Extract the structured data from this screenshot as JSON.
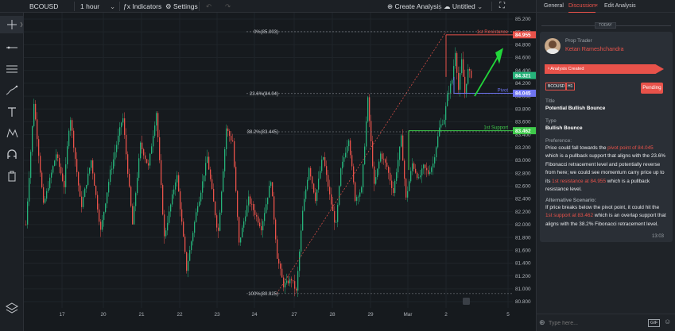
{
  "toolbar": {
    "symbol": "BCOUSD",
    "interval": "1 hour",
    "indicators": "Indicators",
    "settings": "Settings",
    "create_analysis": "Create Analysis",
    "untitled": "Untitled"
  },
  "left_tools": [
    "crosshair-icon",
    "horizontal-line-icon",
    "channel-icon",
    "brush-icon",
    "text-icon",
    "pattern-icon",
    "magnet-icon",
    "trash-icon"
  ],
  "chart_data": {
    "type": "candlestick",
    "symbol": "BCOUSD",
    "interval": "1 hour",
    "ylim": [
      80.8,
      85.2
    ],
    "y_ticks": [
      "85.200",
      "85.000",
      "84.800",
      "84.600",
      "84.400",
      "84.200",
      "84.000",
      "83.800",
      "83.600",
      "83.400",
      "83.200",
      "83.000",
      "82.800",
      "82.600",
      "82.400",
      "82.200",
      "82.000",
      "81.800",
      "81.600",
      "81.400",
      "81.200",
      "81.000",
      "80.800"
    ],
    "x_ticks": [
      "17",
      "20",
      "21",
      "22",
      "23",
      "24",
      "27",
      "28",
      "29",
      "Mar",
      "2",
      "5"
    ],
    "fib_levels": [
      {
        "label": "0%(85.003)",
        "value": 85.003
      },
      {
        "label": "23.6%(84.04)",
        "value": 84.04
      },
      {
        "label": "38.2%(83.445)",
        "value": 83.445
      },
      {
        "label": "100%(80.925)",
        "value": 80.925
      }
    ],
    "lines": [
      {
        "label": "1st Resistance",
        "value": 84.955,
        "badge": "84.955",
        "color": "#e8524a"
      },
      {
        "label": "Pivot",
        "value": 84.045,
        "badge": "84.045",
        "color": "#6e74f0"
      },
      {
        "label": "1st Support",
        "value": 83.462,
        "badge": "83.462",
        "color": "#3ec94a"
      }
    ],
    "last_price": {
      "value": 84.321,
      "badge": "84.321"
    },
    "pivots": [
      [
        0,
        82.0
      ],
      [
        10,
        83.9
      ],
      [
        22,
        82.3
      ],
      [
        38,
        83.1
      ],
      [
        48,
        82.6
      ],
      [
        55,
        83.65
      ],
      [
        68,
        82.3
      ],
      [
        80,
        83.0
      ],
      [
        92,
        81.9
      ],
      [
        105,
        82.9
      ],
      [
        118,
        83.65
      ],
      [
        130,
        82.0
      ],
      [
        140,
        83.25
      ],
      [
        150,
        82.9
      ],
      [
        160,
        83.75
      ],
      [
        170,
        81.8
      ],
      [
        185,
        82.75
      ],
      [
        197,
        81.3
      ],
      [
        212,
        82.4
      ],
      [
        222,
        83.05
      ],
      [
        235,
        81.9
      ],
      [
        245,
        83.5
      ],
      [
        252,
        83.3
      ],
      [
        260,
        81.7
      ],
      [
        272,
        82.4
      ],
      [
        288,
        81.95
      ],
      [
        300,
        82.7
      ],
      [
        308,
        81.5
      ],
      [
        316,
        81.05
      ],
      [
        326,
        81.15
      ],
      [
        332,
        80.95
      ],
      [
        340,
        82.2
      ],
      [
        348,
        82.9
      ],
      [
        356,
        82.4
      ],
      [
        365,
        83.05
      ],
      [
        373,
        82.45
      ],
      [
        380,
        82.0
      ],
      [
        386,
        82.85
      ],
      [
        396,
        83.35
      ],
      [
        404,
        82.4
      ],
      [
        412,
        82.55
      ],
      [
        420,
        83.95
      ],
      [
        428,
        82.6
      ],
      [
        436,
        83.1
      ],
      [
        444,
        82.9
      ],
      [
        452,
        82.5
      ],
      [
        462,
        83.35
      ],
      [
        468,
        82.4
      ],
      [
        476,
        82.95
      ],
      [
        484,
        82.7
      ],
      [
        490,
        82.9
      ],
      [
        496,
        82.8
      ],
      [
        502,
        82.95
      ],
      [
        510,
        83.5
      ],
      [
        516,
        83.65
      ],
      [
        520,
        84.0
      ],
      [
        526,
        84.25
      ],
      [
        530,
        84.7
      ],
      [
        534,
        84.1
      ],
      [
        538,
        84.55
      ],
      [
        542,
        84.05
      ],
      [
        546,
        84.4
      ],
      [
        550,
        84.32
      ]
    ]
  },
  "panel": {
    "tabs": [
      "General",
      "Discussion",
      "Edit Analysis"
    ],
    "today": "TODAY",
    "role": "Prop Trader",
    "author": "Ketan Rameshchandra",
    "status_badge": "Analysis Created",
    "tag_symbol": "BCOUSD",
    "tag_interval": "H1",
    "pending": "Pending",
    "title_label": "Title",
    "title_value": "Potential Bullish Bounce",
    "type_label": "Type",
    "type_value": "Bullish Bounce",
    "preference_label": "Preference:",
    "pref_1": "Price could fall towards the ",
    "pref_2": "pivot point of 84.045",
    "pref_3": " which is a pullback support that aligns with the 23.6% Fibonacci retracement level and potentially reverse from here; we could see momentum carry price up to its ",
    "pref_4": "1st resistance at 84.955",
    "pref_5": " which is a pullback resistance level.",
    "alt_label": "Alternative Scenario:",
    "alt_1": "If price breaks below the pivot point, it could hit the ",
    "alt_2": "1st support at 83.462",
    "alt_3": " which is an overlap support that aligns with the 38.2% Fibonacci retracement level.",
    "time": "13:03",
    "placeholder": "Type here...",
    "gif": "GIF"
  }
}
